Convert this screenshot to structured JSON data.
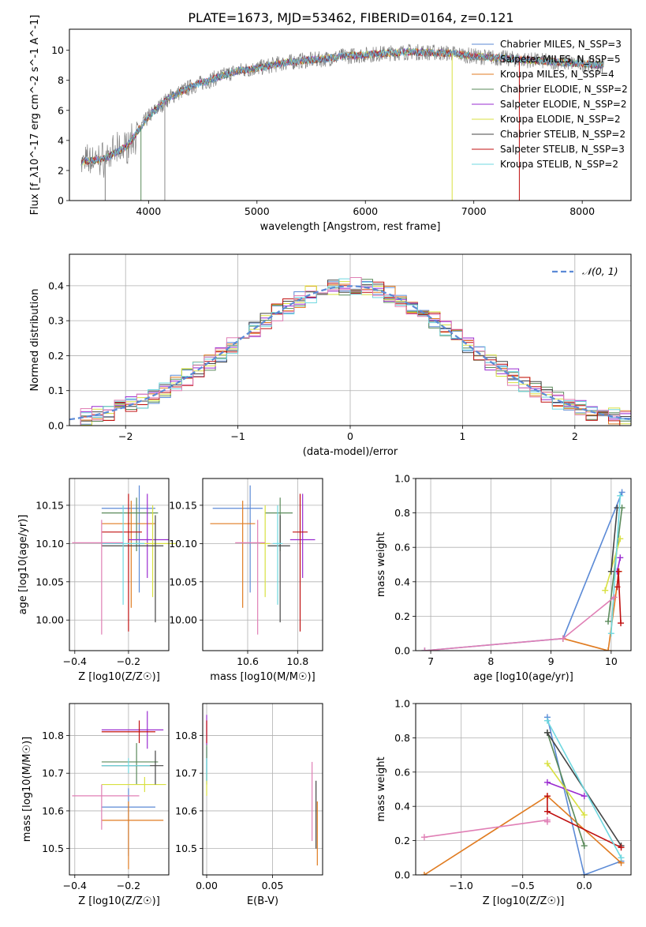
{
  "figure_title": "PLATE=1673, MJD=53462, FIBERID=0164, z=0.121",
  "chart_data": [
    {
      "id": "spectrum",
      "type": "line",
      "xlabel": "wavelength [Angstrom, rest frame]",
      "ylabel": "Flux [f_λ10^-17 erg cm^-2 s^-1 A^-1]",
      "xlim": [
        3270,
        8450
      ],
      "ylim": [
        0,
        11.4
      ],
      "xticks": [
        4000,
        5000,
        6000,
        7000,
        8000
      ],
      "yticks": [
        0,
        2,
        4,
        6,
        8,
        10
      ],
      "grid": false,
      "legend_position": "top-right",
      "continuum": {
        "x": [
          3400,
          3600,
          3800,
          4000,
          4200,
          4400,
          4600,
          4800,
          5000,
          5200,
          5400,
          5600,
          5800,
          6000,
          6200,
          6400,
          6600,
          6800,
          7000,
          7200,
          7400,
          7600,
          7800,
          8000,
          8200
        ],
        "y": [
          2.6,
          2.8,
          3.6,
          5.6,
          6.9,
          7.6,
          8.1,
          8.6,
          8.8,
          9.1,
          9.3,
          9.4,
          9.6,
          9.7,
          9.8,
          9.9,
          9.85,
          9.8,
          9.6,
          9.5,
          9.4,
          9.3,
          9.2,
          9.1,
          9.0
        ]
      },
      "series": [
        {
          "name": "Chabrier MILES, N_SSP=3",
          "color": "#5b8ad6"
        },
        {
          "name": "Salpeter MILES, N_SSP=5",
          "color": "#8a8a8a"
        },
        {
          "name": "Kroupa MILES, N_SSP=4",
          "color": "#e07b20"
        },
        {
          "name": "Chabrier ELODIE, N_SSP=2",
          "color": "#5a8a5a"
        },
        {
          "name": "Salpeter ELODIE, N_SSP=2",
          "color": "#9a2bd0"
        },
        {
          "name": "Kroupa ELODIE, N_SSP=2",
          "color": "#d8e040"
        },
        {
          "name": "Chabrier STELIB, N_SSP=2",
          "color": "#444444"
        },
        {
          "name": "Salpeter STELIB, N_SSP=3",
          "color": "#c01010"
        },
        {
          "name": "Kroupa STELIB, N_SSP=2",
          "color": "#6fd8e0"
        }
      ]
    },
    {
      "id": "residuals",
      "type": "line",
      "xlabel": "(data-model)/error",
      "ylabel": "Normed distribution",
      "xlim": [
        -2.5,
        2.5
      ],
      "ylim": [
        0,
        0.49
      ],
      "xticks": [
        -2,
        -1,
        0,
        1,
        2
      ],
      "yticks": [
        0.0,
        0.1,
        0.2,
        0.3,
        0.4
      ],
      "grid": true,
      "legend": "𝒩(0, 1)",
      "legend_position": "top-right",
      "bin_width": 0.1
    },
    {
      "id": "age_vs_z",
      "type": "scatter",
      "xlabel": "Z [log10(Z/Z☉)]",
      "ylabel": "age [log10(age/yr)]",
      "xlim": [
        -0.42,
        -0.05
      ],
      "ylim": [
        9.96,
        10.185
      ],
      "xticks": [
        -0.4,
        -0.2
      ],
      "yticks": [
        10.0,
        10.05,
        10.1,
        10.15
      ],
      "grid": true,
      "points": [
        {
          "series": 0,
          "x": -0.16,
          "y": 10.146,
          "xerr": [
            0.14,
            0.06
          ],
          "yerr": [
            0.11,
            0.03
          ]
        },
        {
          "series": 2,
          "x": -0.19,
          "y": 10.126,
          "xerr": [
            0.11,
            0.09
          ],
          "yerr": [
            0.11,
            0.03
          ]
        },
        {
          "series": 3,
          "x": -0.17,
          "y": 10.14,
          "xerr": [
            0.13,
            0.08
          ],
          "yerr": [
            0.05,
            0.02
          ]
        },
        {
          "series": 4,
          "x": -0.13,
          "y": 10.105,
          "xerr": [
            0.07,
            0.08
          ],
          "yerr": [
            0.05,
            0.06
          ]
        },
        {
          "series": 5,
          "x": -0.11,
          "y": 10.1,
          "xerr": [
            0.08,
            0.09
          ],
          "yerr": [
            0.07,
            0.05
          ]
        },
        {
          "series": 6,
          "x": -0.1,
          "y": 10.097,
          "xerr": [
            0.2,
            0.03
          ],
          "yerr": [
            0.1,
            0.04
          ]
        },
        {
          "series": 7,
          "x": -0.2,
          "y": 10.115,
          "xerr": [
            0.1,
            0.05
          ],
          "yerr": [
            0.13,
            0.05
          ]
        },
        {
          "series": 8,
          "x": -0.22,
          "y": 10.1,
          "xerr": [
            0.08,
            0.08
          ],
          "yerr": [
            0.08,
            0.05
          ]
        },
        {
          "series": 9,
          "x": -0.3,
          "y": 10.101,
          "xerr": [
            0.11,
            0.08
          ],
          "yerr": [
            0.12,
            0.03
          ]
        }
      ]
    },
    {
      "id": "age_vs_mass",
      "type": "scatter",
      "xlabel": "mass [log10(M/M☉)]",
      "ylabel": "",
      "xlim": [
        10.42,
        10.9
      ],
      "ylim": [
        9.96,
        10.185
      ],
      "xticks": [
        10.6,
        10.8
      ],
      "yticks": [
        10.0,
        10.05,
        10.1,
        10.15
      ],
      "grid": true,
      "points": [
        {
          "series": 0,
          "x": 10.61,
          "y": 10.146,
          "xerr": [
            0.15,
            0.05
          ],
          "yerr": [
            0.11,
            0.03
          ]
        },
        {
          "series": 2,
          "x": 10.58,
          "y": 10.126,
          "xerr": [
            0.13,
            0.05
          ],
          "yerr": [
            0.11,
            0.03
          ]
        },
        {
          "series": 3,
          "x": 10.73,
          "y": 10.14,
          "xerr": [
            0.06,
            0.05
          ],
          "yerr": [
            0.05,
            0.02
          ]
        },
        {
          "series": 4,
          "x": 10.82,
          "y": 10.105,
          "xerr": [
            0.05,
            0.05
          ],
          "yerr": [
            0.05,
            0.06
          ]
        },
        {
          "series": 5,
          "x": 10.67,
          "y": 10.1,
          "xerr": [
            0.02,
            0.02
          ],
          "yerr": [
            0.07,
            0.05
          ]
        },
        {
          "series": 6,
          "x": 10.73,
          "y": 10.097,
          "xerr": [
            0.05,
            0.04
          ],
          "yerr": [
            0.1,
            0.04
          ]
        },
        {
          "series": 7,
          "x": 10.81,
          "y": 10.115,
          "xerr": [
            0.03,
            0.03
          ],
          "yerr": [
            0.13,
            0.05
          ]
        },
        {
          "series": 8,
          "x": 10.72,
          "y": 10.1,
          "xerr": [
            0.02,
            0.02
          ],
          "yerr": [
            0.08,
            0.05
          ]
        },
        {
          "series": 9,
          "x": 10.64,
          "y": 10.101,
          "xerr": [
            0.09,
            0.03
          ],
          "yerr": [
            0.12,
            0.03
          ]
        }
      ]
    },
    {
      "id": "weight_vs_age",
      "type": "line",
      "xlabel": "age [log10(age/yr)]",
      "ylabel": "mass weight",
      "xlim": [
        6.75,
        10.33
      ],
      "ylim": [
        0,
        1.0
      ],
      "xticks": [
        7,
        8,
        9,
        10
      ],
      "yticks": [
        0.0,
        0.2,
        0.4,
        0.6,
        0.8,
        1.0
      ],
      "grid": true,
      "lines": [
        {
          "series": 0,
          "x": [
            6.9,
            9.2,
            10.18
          ],
          "y": [
            0.0,
            0.07,
            0.92
          ]
        },
        {
          "series": 2,
          "x": [
            9.2,
            9.95,
            10.13
          ],
          "y": [
            0.07,
            0.0,
            0.46
          ]
        },
        {
          "series": 3,
          "x": [
            9.95,
            10.18
          ],
          "y": [
            0.17,
            0.83
          ]
        },
        {
          "series": 4,
          "x": [
            10.1,
            10.15
          ],
          "y": [
            0.46,
            0.54
          ]
        },
        {
          "series": 5,
          "x": [
            9.9,
            10.15
          ],
          "y": [
            0.35,
            0.65
          ]
        },
        {
          "series": 6,
          "x": [
            10.0,
            10.1
          ],
          "y": [
            0.46,
            0.83
          ]
        },
        {
          "series": 7,
          "x": [
            10.1,
            10.12,
            10.16
          ],
          "y": [
            0.37,
            0.46,
            0.16
          ]
        },
        {
          "series": 8,
          "x": [
            10.0,
            10.15
          ],
          "y": [
            0.1,
            0.9
          ]
        },
        {
          "series": 9,
          "x": [
            6.9,
            9.2,
            10.05
          ],
          "y": [
            0.0,
            0.07,
            0.31
          ]
        }
      ]
    },
    {
      "id": "mass_vs_z",
      "type": "scatter",
      "xlabel": "Z [log10(Z/Z☉)]",
      "ylabel": "mass [log10(M/M☉)]",
      "xlim": [
        -0.42,
        -0.05
      ],
      "ylim": [
        10.43,
        10.885
      ],
      "xticks": [
        -0.4,
        -0.2
      ],
      "yticks": [
        10.5,
        10.6,
        10.7,
        10.8
      ],
      "grid": true,
      "points": [
        {
          "series": 0,
          "x": -0.2,
          "y": 10.61,
          "xerr": [
            0.1,
            0.1
          ],
          "yerr": [
            0.13,
            0.05
          ]
        },
        {
          "series": 2,
          "x": -0.2,
          "y": 10.575,
          "xerr": [
            0.1,
            0.13
          ],
          "yerr": [
            0.13,
            0.05
          ]
        },
        {
          "series": 3,
          "x": -0.17,
          "y": 10.73,
          "xerr": [
            0.13,
            0.08
          ],
          "yerr": [
            0.06,
            0.05
          ]
        },
        {
          "series": 4,
          "x": -0.13,
          "y": 10.815,
          "xerr": [
            0.17,
            0.06
          ],
          "yerr": [
            0.05,
            0.05
          ]
        },
        {
          "series": 5,
          "x": -0.14,
          "y": 10.67,
          "xerr": [
            0.16,
            0.08
          ],
          "yerr": [
            0.02,
            0.02
          ]
        },
        {
          "series": 6,
          "x": -0.1,
          "y": 10.72,
          "xerr": [
            0.2,
            0.03
          ],
          "yerr": [
            0.05,
            0.04
          ]
        },
        {
          "series": 7,
          "x": -0.16,
          "y": 10.81,
          "xerr": [
            0.14,
            0.06
          ],
          "yerr": [
            0.03,
            0.03
          ]
        },
        {
          "series": 8,
          "x": -0.2,
          "y": 10.72,
          "xerr": [
            0.1,
            0.08
          ],
          "yerr": [
            0.02,
            0.02
          ]
        },
        {
          "series": 9,
          "x": -0.3,
          "y": 10.64,
          "xerr": [
            0.11,
            0.14
          ],
          "yerr": [
            0.09,
            0.03
          ]
        }
      ]
    },
    {
      "id": "mass_vs_ebv",
      "type": "scatter",
      "xlabel": "E(B-V)",
      "ylabel": "",
      "xlim": [
        -0.003,
        0.088
      ],
      "ylim": [
        10.43,
        10.885
      ],
      "xticks": [
        0.0,
        0.05
      ],
      "yticks": [
        10.5,
        10.6,
        10.7,
        10.8
      ],
      "grid": true,
      "points": [
        {
          "series": 0,
          "x": 0.0,
          "y": 10.72,
          "xerr": [
            0,
            0
          ],
          "yerr": [
            0.05,
            0.05
          ]
        },
        {
          "series": 2,
          "x": 0.084,
          "y": 10.575,
          "xerr": [
            0,
            0
          ],
          "yerr": [
            0.12,
            0.05
          ]
        },
        {
          "series": 3,
          "x": 0.0,
          "y": 10.73,
          "xerr": [
            0,
            0
          ],
          "yerr": [
            0.05,
            0.05
          ]
        },
        {
          "series": 4,
          "x": 0.0,
          "y": 10.815,
          "xerr": [
            0,
            0
          ],
          "yerr": [
            0.04,
            0.04
          ]
        },
        {
          "series": 5,
          "x": 0.0,
          "y": 10.67,
          "xerr": [
            0,
            0
          ],
          "yerr": [
            0.03,
            0.03
          ]
        },
        {
          "series": 6,
          "x": 0.083,
          "y": 10.58,
          "xerr": [
            0,
            0
          ],
          "yerr": [
            0.08,
            0.1
          ]
        },
        {
          "series": 7,
          "x": 0.0,
          "y": 10.81,
          "xerr": [
            0,
            0
          ],
          "yerr": [
            0.03,
            0.03
          ]
        },
        {
          "series": 8,
          "x": 0.0,
          "y": 10.71,
          "xerr": [
            0,
            0
          ],
          "yerr": [
            0.03,
            0.03
          ]
        },
        {
          "series": 9,
          "x": 0.08,
          "y": 10.64,
          "xerr": [
            0,
            0
          ],
          "yerr": [
            0.12,
            0.09
          ]
        }
      ]
    },
    {
      "id": "weight_vs_z",
      "type": "line",
      "xlabel": "Z [log10(Z/Z☉)]",
      "ylabel": "mass weight",
      "xlim": [
        -1.37,
        0.38
      ],
      "ylim": [
        0,
        1.0
      ],
      "xticks": [
        -1.0,
        -0.5,
        0.0
      ],
      "yticks": [
        0.0,
        0.2,
        0.4,
        0.6,
        0.8,
        1.0
      ],
      "grid": true,
      "lines": [
        {
          "series": 0,
          "x": [
            -0.3,
            0.0,
            0.3
          ],
          "y": [
            0.92,
            0.0,
            0.08
          ]
        },
        {
          "series": 2,
          "x": [
            -1.3,
            -0.3,
            0.3
          ],
          "y": [
            0.0,
            0.46,
            0.07
          ]
        },
        {
          "series": 3,
          "x": [
            -0.3,
            0.0
          ],
          "y": [
            0.83,
            0.17
          ]
        },
        {
          "series": 4,
          "x": [
            -0.3,
            0.0
          ],
          "y": [
            0.54,
            0.46
          ]
        },
        {
          "series": 5,
          "x": [
            -0.3,
            0.0
          ],
          "y": [
            0.65,
            0.35
          ]
        },
        {
          "series": 6,
          "x": [
            -0.3,
            0.3
          ],
          "y": [
            0.83,
            0.17
          ]
        },
        {
          "series": 7,
          "x": [
            -0.3,
            -0.3,
            0.3
          ],
          "y": [
            0.46,
            0.37,
            0.16
          ]
        },
        {
          "series": 8,
          "x": [
            -0.3,
            0.3
          ],
          "y": [
            0.9,
            0.1
          ]
        },
        {
          "series": 9,
          "x": [
            -1.3,
            -0.3,
            -0.3
          ],
          "y": [
            0.22,
            0.32,
            0.31
          ]
        }
      ]
    }
  ],
  "normal_curve_color": "#5b8ad6",
  "palette": [
    "#5b8ad6",
    "#8a8a8a",
    "#e07b20",
    "#5a8a5a",
    "#9a2bd0",
    "#d8e040",
    "#444444",
    "#c01010",
    "#6fd8e0",
    "#e07fb5"
  ]
}
